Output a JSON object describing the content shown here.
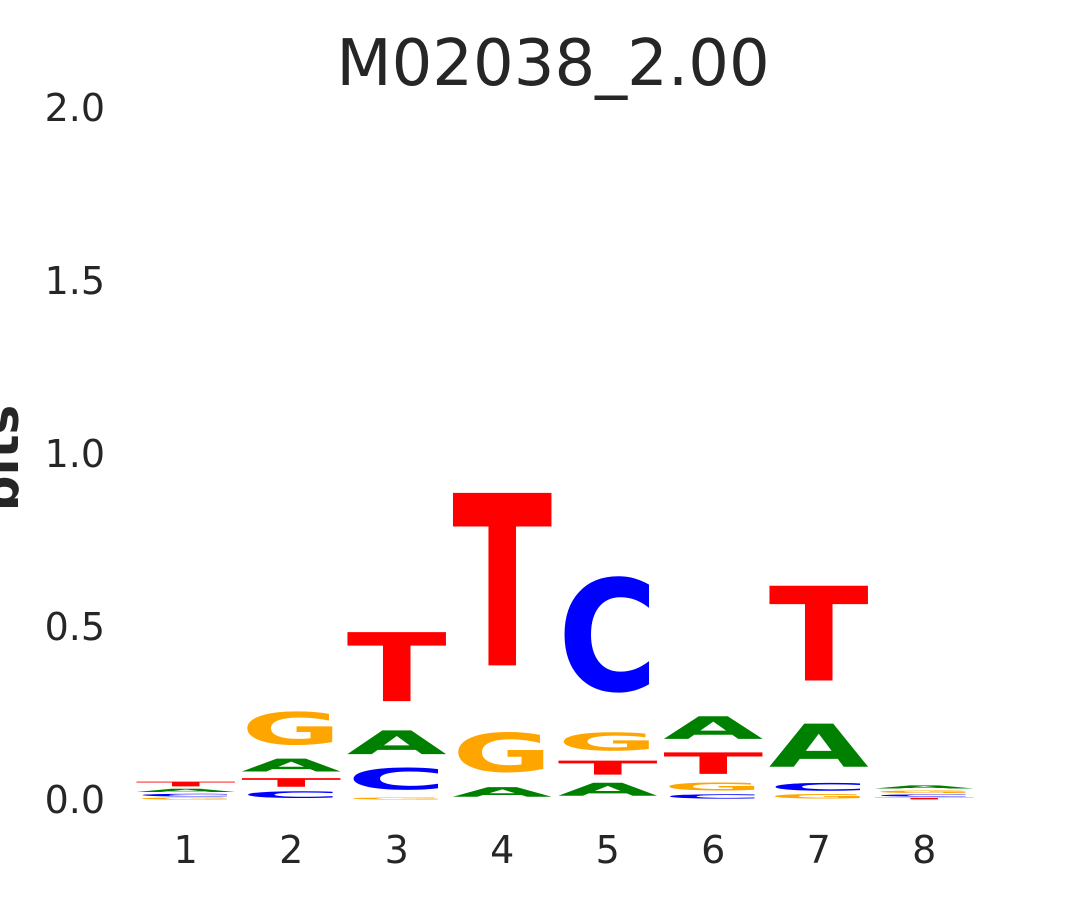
{
  "chart_data": {
    "type": "sequence-logo",
    "title": "M02038_2.00",
    "ylabel": "bits",
    "xlabel": "",
    "ylim": [
      0,
      2
    ],
    "yticks": [
      "0.0",
      "0.5",
      "1.0",
      "1.5",
      "2.0"
    ],
    "ytick_values": [
      0,
      0.5,
      1.0,
      1.5,
      2.0
    ],
    "positions": [
      "1",
      "2",
      "3",
      "4",
      "5",
      "6",
      "7",
      "8"
    ],
    "colors": {
      "A": "#008000",
      "C": "#0000ff",
      "G": "#ffa500",
      "T": "#ff0000"
    },
    "stacks": [
      [
        {
          "letter": "G",
          "height": 0.008
        },
        {
          "letter": "C",
          "height": 0.012
        },
        {
          "letter": "A",
          "height": 0.015
        },
        {
          "letter": "T",
          "height": 0.022
        }
      ],
      [
        {
          "letter": "C",
          "height": 0.03
        },
        {
          "letter": "T",
          "height": 0.04
        },
        {
          "letter": "A",
          "height": 0.06
        },
        {
          "letter": "G",
          "height": 0.15
        }
      ],
      [
        {
          "letter": "G",
          "height": 0.01
        },
        {
          "letter": "C",
          "height": 0.1
        },
        {
          "letter": "A",
          "height": 0.11
        },
        {
          "letter": "T",
          "height": 0.32
        }
      ],
      [
        {
          "letter": "A",
          "height": 0.045
        },
        {
          "letter": "G",
          "height": 0.18
        },
        {
          "letter": "T",
          "height": 0.8
        }
      ],
      [
        {
          "letter": "A",
          "height": 0.06
        },
        {
          "letter": "T",
          "height": 0.065
        },
        {
          "letter": "G",
          "height": 0.085
        },
        {
          "letter": "C",
          "height": 0.52
        }
      ],
      [
        {
          "letter": "C",
          "height": 0.02
        },
        {
          "letter": "G",
          "height": 0.035
        },
        {
          "letter": "T",
          "height": 0.1
        },
        {
          "letter": "A",
          "height": 0.105
        }
      ],
      [
        {
          "letter": "G",
          "height": 0.02
        },
        {
          "letter": "C",
          "height": 0.035
        },
        {
          "letter": "A",
          "height": 0.2
        },
        {
          "letter": "T",
          "height": 0.44
        }
      ],
      [
        {
          "letter": "T",
          "height": 0.008
        },
        {
          "letter": "C",
          "height": 0.01
        },
        {
          "letter": "G",
          "height": 0.012
        },
        {
          "letter": "A",
          "height": 0.015
        }
      ]
    ]
  }
}
